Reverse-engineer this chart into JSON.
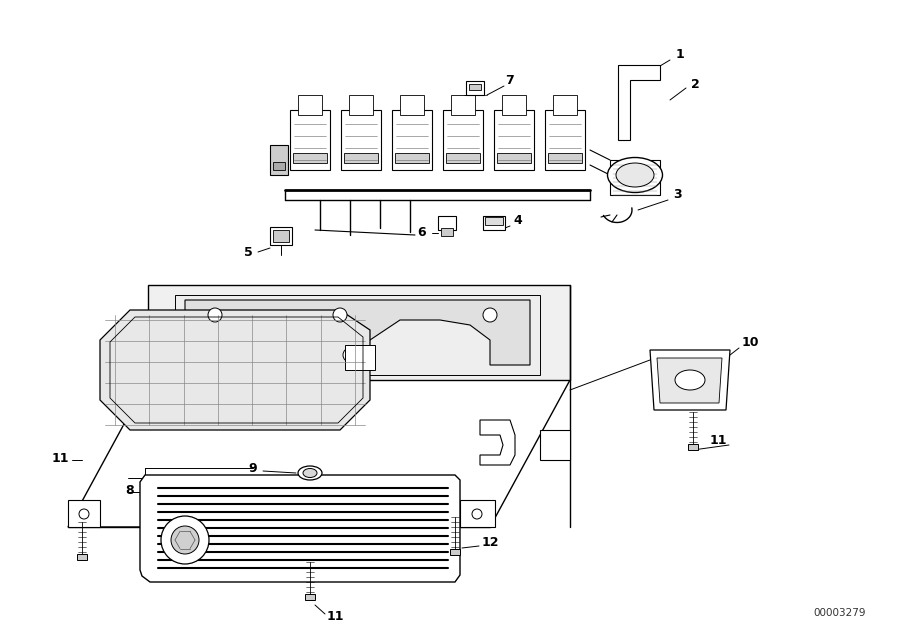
{
  "background_color": "#ffffff",
  "line_color": "#000000",
  "fig_width": 9.0,
  "fig_height": 6.35,
  "dpi": 100,
  "diagram_id": "00003279",
  "lw_main": 1.0,
  "lw_thin": 0.6,
  "gray_light": "#e8e8e8",
  "gray_mid": "#d0d0d0",
  "gray_dark": "#aaaaaa"
}
